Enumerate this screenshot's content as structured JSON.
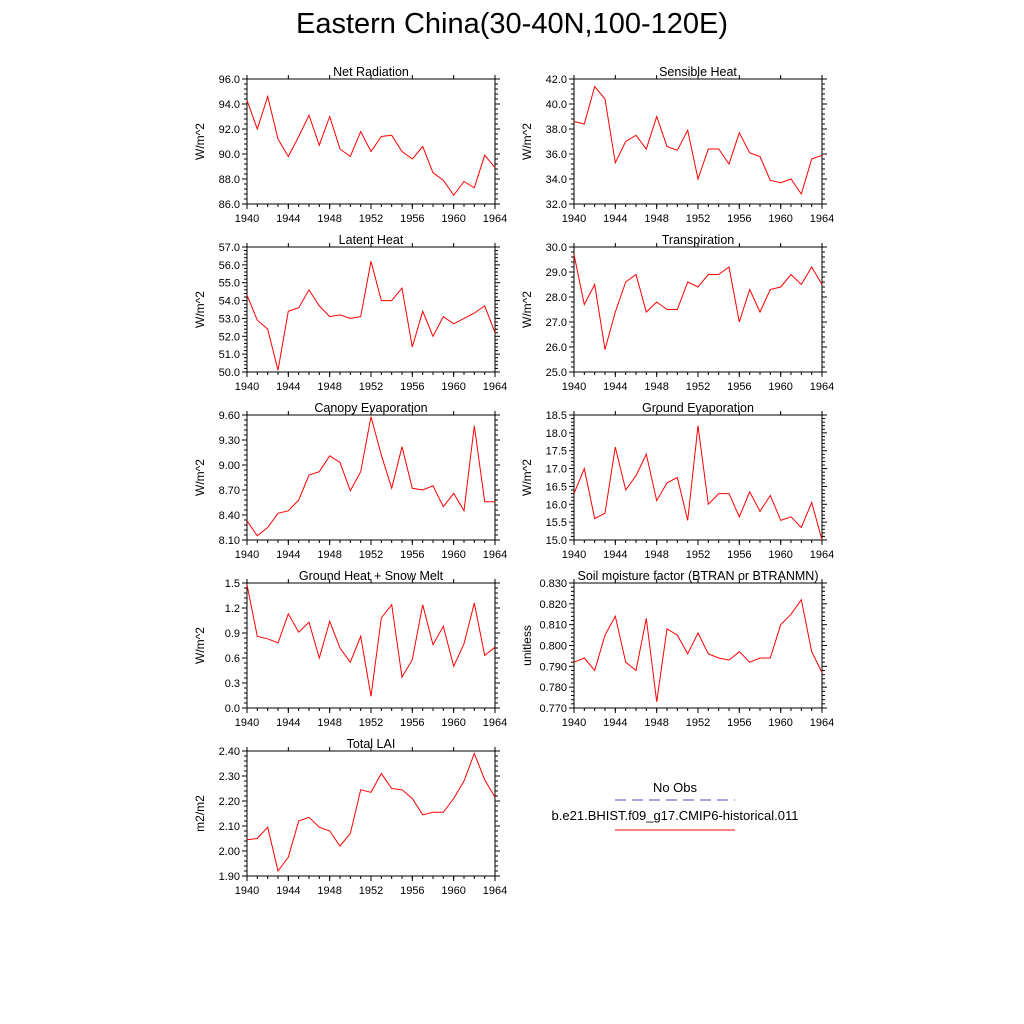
{
  "title": "Eastern China(30-40N,100-120E)",
  "legend": {
    "obs_label": "No Obs",
    "obs_color": "#4b4bbf",
    "model_label": "b.e21.BHIST.f09_g17.CMIP6-historical.011",
    "model_color": "#ff0000"
  },
  "chart_data": [
    {
      "type": "line",
      "title": "Net Radiation",
      "ylabel": "W/m^2",
      "xlim": [
        1940,
        1964
      ],
      "xticks": [
        "1940",
        "1944",
        "1948",
        "1952",
        "1956",
        "1960",
        "1964"
      ],
      "ylim": [
        86,
        96
      ],
      "yticks": [
        "86.0",
        "88.0",
        "90.0",
        "92.0",
        "94.0",
        "96.0"
      ],
      "x": [
        1940,
        1941,
        1942,
        1943,
        1944,
        1945,
        1946,
        1947,
        1948,
        1949,
        1950,
        1951,
        1952,
        1953,
        1954,
        1955,
        1956,
        1957,
        1958,
        1959,
        1960,
        1961,
        1962,
        1963,
        1964
      ],
      "series": [
        {
          "values": [
            94.3,
            92.0,
            94.6,
            91.2,
            89.8,
            91.4,
            93.1,
            90.7,
            93.0,
            90.4,
            89.8,
            91.8,
            90.2,
            91.4,
            91.5,
            90.2,
            89.6,
            90.6,
            88.5,
            87.9,
            86.7,
            87.8,
            87.3,
            89.9,
            88.9
          ]
        }
      ]
    },
    {
      "type": "line",
      "title": "Sensible Heat",
      "ylabel": "W/m^2",
      "xlim": [
        1940,
        1964
      ],
      "xticks": [
        "1940",
        "1944",
        "1948",
        "1952",
        "1956",
        "1960",
        "1964"
      ],
      "ylim": [
        32,
        42
      ],
      "yticks": [
        "32.0",
        "34.0",
        "36.0",
        "38.0",
        "40.0",
        "42.0"
      ],
      "x": [
        1940,
        1941,
        1942,
        1943,
        1944,
        1945,
        1946,
        1947,
        1948,
        1949,
        1950,
        1951,
        1952,
        1953,
        1954,
        1955,
        1956,
        1957,
        1958,
        1959,
        1960,
        1961,
        1962,
        1963,
        1964
      ],
      "series": [
        {
          "values": [
            38.6,
            38.4,
            41.4,
            40.4,
            35.3,
            37.0,
            37.5,
            36.4,
            39.0,
            36.6,
            36.3,
            37.9,
            34.0,
            36.4,
            36.4,
            35.2,
            37.7,
            36.1,
            35.8,
            33.9,
            33.7,
            34.0,
            32.8,
            35.6,
            35.9
          ]
        }
      ]
    },
    {
      "type": "line",
      "title": "Latent Heat",
      "ylabel": "W/m^2",
      "xlim": [
        1940,
        1964
      ],
      "xticks": [
        "1940",
        "1944",
        "1948",
        "1952",
        "1956",
        "1960",
        "1964"
      ],
      "ylim": [
        50,
        57
      ],
      "yticks": [
        "50.0",
        "51.0",
        "52.0",
        "53.0",
        "54.0",
        "55.0",
        "56.0",
        "57.0"
      ],
      "x": [
        1940,
        1941,
        1942,
        1943,
        1944,
        1945,
        1946,
        1947,
        1948,
        1949,
        1950,
        1951,
        1952,
        1953,
        1954,
        1955,
        1956,
        1957,
        1958,
        1959,
        1960,
        1961,
        1962,
        1963,
        1964
      ],
      "series": [
        {
          "values": [
            54.3,
            52.9,
            52.4,
            50.1,
            53.4,
            53.6,
            54.6,
            53.7,
            53.1,
            53.2,
            53.0,
            53.1,
            56.2,
            54.0,
            54.0,
            54.7,
            51.4,
            53.4,
            52.0,
            53.1,
            52.7,
            53.0,
            53.3,
            53.7,
            52.2
          ]
        }
      ]
    },
    {
      "type": "line",
      "title": "Transpiration",
      "ylabel": "W/m^2",
      "xlim": [
        1940,
        1964
      ],
      "xticks": [
        "1940",
        "1944",
        "1948",
        "1952",
        "1956",
        "1960",
        "1964"
      ],
      "ylim": [
        25,
        30
      ],
      "yticks": [
        "25.0",
        "26.0",
        "27.0",
        "28.0",
        "29.0",
        "30.0"
      ],
      "x": [
        1940,
        1941,
        1942,
        1943,
        1944,
        1945,
        1946,
        1947,
        1948,
        1949,
        1950,
        1951,
        1952,
        1953,
        1954,
        1955,
        1956,
        1957,
        1958,
        1959,
        1960,
        1961,
        1962,
        1963,
        1964
      ],
      "series": [
        {
          "values": [
            29.7,
            27.7,
            28.5,
            25.9,
            27.4,
            28.6,
            28.9,
            27.4,
            27.8,
            27.5,
            27.5,
            28.6,
            28.4,
            28.9,
            28.9,
            29.2,
            27.0,
            28.3,
            27.4,
            28.3,
            28.4,
            28.9,
            28.5,
            29.2,
            28.5
          ]
        }
      ]
    },
    {
      "type": "line",
      "title": "Canopy Evaporation",
      "ylabel": "W/m^2",
      "xlim": [
        1940,
        1964
      ],
      "xticks": [
        "1940",
        "1944",
        "1948",
        "1952",
        "1956",
        "1960",
        "1964"
      ],
      "ylim": [
        8.1,
        9.6
      ],
      "yticks": [
        "8.10",
        "8.40",
        "8.70",
        "9.00",
        "9.30",
        "9.60"
      ],
      "x": [
        1940,
        1941,
        1942,
        1943,
        1944,
        1945,
        1946,
        1947,
        1948,
        1949,
        1950,
        1951,
        1952,
        1953,
        1954,
        1955,
        1956,
        1957,
        1958,
        1959,
        1960,
        1961,
        1962,
        1963,
        1964
      ],
      "series": [
        {
          "values": [
            8.33,
            8.15,
            8.25,
            8.42,
            8.45,
            8.58,
            8.88,
            8.92,
            9.11,
            9.03,
            8.69,
            8.92,
            9.58,
            9.12,
            8.72,
            9.22,
            8.72,
            8.7,
            8.75,
            8.5,
            8.66,
            8.45,
            9.47,
            8.56,
            8.56
          ]
        }
      ]
    },
    {
      "type": "line",
      "title": "Ground Evaporation",
      "ylabel": "W/m^2",
      "xlim": [
        1940,
        1964
      ],
      "xticks": [
        "1940",
        "1944",
        "1948",
        "1952",
        "1956",
        "1960",
        "1964"
      ],
      "ylim": [
        15,
        18.5
      ],
      "yticks": [
        "15.0",
        "15.5",
        "16.0",
        "16.5",
        "17.0",
        "17.5",
        "18.0",
        "18.5"
      ],
      "x": [
        1940,
        1941,
        1942,
        1943,
        1944,
        1945,
        1946,
        1947,
        1948,
        1949,
        1950,
        1951,
        1952,
        1953,
        1954,
        1955,
        1956,
        1957,
        1958,
        1959,
        1960,
        1961,
        1962,
        1963,
        1964
      ],
      "series": [
        {
          "values": [
            16.3,
            17.0,
            15.6,
            15.75,
            17.6,
            16.4,
            16.8,
            17.4,
            16.1,
            16.6,
            16.75,
            15.55,
            18.2,
            16.0,
            16.3,
            16.3,
            15.65,
            16.35,
            15.8,
            16.25,
            15.55,
            15.65,
            15.35,
            16.05,
            15.0
          ]
        }
      ]
    },
    {
      "type": "line",
      "title": "Ground Heat + Snow Melt",
      "ylabel": "W/m^2",
      "xlim": [
        1940,
        1964
      ],
      "xticks": [
        "1940",
        "1944",
        "1948",
        "1952",
        "1956",
        "1960",
        "1964"
      ],
      "ylim": [
        0,
        1.5
      ],
      "yticks": [
        "0.0",
        "0.3",
        "0.6",
        "0.9",
        "1.2",
        "1.5"
      ],
      "x": [
        1940,
        1941,
        1942,
        1943,
        1944,
        1945,
        1946,
        1947,
        1948,
        1949,
        1950,
        1951,
        1952,
        1953,
        1954,
        1955,
        1956,
        1957,
        1958,
        1959,
        1960,
        1961,
        1962,
        1963,
        1964
      ],
      "series": [
        {
          "values": [
            1.48,
            0.86,
            0.83,
            0.78,
            1.13,
            0.91,
            1.03,
            0.6,
            1.04,
            0.72,
            0.55,
            0.86,
            0.14,
            1.08,
            1.24,
            0.37,
            0.58,
            1.24,
            0.76,
            0.98,
            0.5,
            0.77,
            1.26,
            0.63,
            0.73
          ]
        }
      ]
    },
    {
      "type": "line",
      "title": "Soil moisture factor (BTRAN or BTRANMN)",
      "ylabel": "unitless",
      "xlim": [
        1940,
        1964
      ],
      "xticks": [
        "1940",
        "1944",
        "1948",
        "1952",
        "1956",
        "1960",
        "1964"
      ],
      "ylim": [
        0.77,
        0.83
      ],
      "yticks": [
        "0.770",
        "0.780",
        "0.790",
        "0.800",
        "0.810",
        "0.820",
        "0.830"
      ],
      "x": [
        1940,
        1941,
        1942,
        1943,
        1944,
        1945,
        1946,
        1947,
        1948,
        1949,
        1950,
        1951,
        1952,
        1953,
        1954,
        1955,
        1956,
        1957,
        1958,
        1959,
        1960,
        1961,
        1962,
        1963,
        1964
      ],
      "series": [
        {
          "values": [
            0.792,
            0.794,
            0.788,
            0.805,
            0.814,
            0.792,
            0.788,
            0.813,
            0.773,
            0.808,
            0.805,
            0.796,
            0.806,
            0.796,
            0.794,
            0.793,
            0.797,
            0.792,
            0.794,
            0.794,
            0.81,
            0.815,
            0.822,
            0.797,
            0.787
          ]
        }
      ]
    },
    {
      "type": "line",
      "title": "Total LAI",
      "ylabel": "m2/m2",
      "xlim": [
        1940,
        1964
      ],
      "xticks": [
        "1940",
        "1944",
        "1948",
        "1952",
        "1956",
        "1960",
        "1964"
      ],
      "ylim": [
        1.9,
        2.4
      ],
      "yticks": [
        "1.90",
        "2.00",
        "2.10",
        "2.20",
        "2.30",
        "2.40"
      ],
      "x": [
        1940,
        1941,
        1942,
        1943,
        1944,
        1945,
        1946,
        1947,
        1948,
        1949,
        1950,
        1951,
        1952,
        1953,
        1954,
        1955,
        1956,
        1957,
        1958,
        1959,
        1960,
        1961,
        1962,
        1963,
        1964
      ],
      "series": [
        {
          "values": [
            2.045,
            2.05,
            2.095,
            1.92,
            1.975,
            2.12,
            2.135,
            2.095,
            2.08,
            2.02,
            2.07,
            2.245,
            2.235,
            2.31,
            2.25,
            2.245,
            2.21,
            2.145,
            2.155,
            2.155,
            2.21,
            2.28,
            2.39,
            2.285,
            2.215
          ]
        }
      ]
    }
  ]
}
